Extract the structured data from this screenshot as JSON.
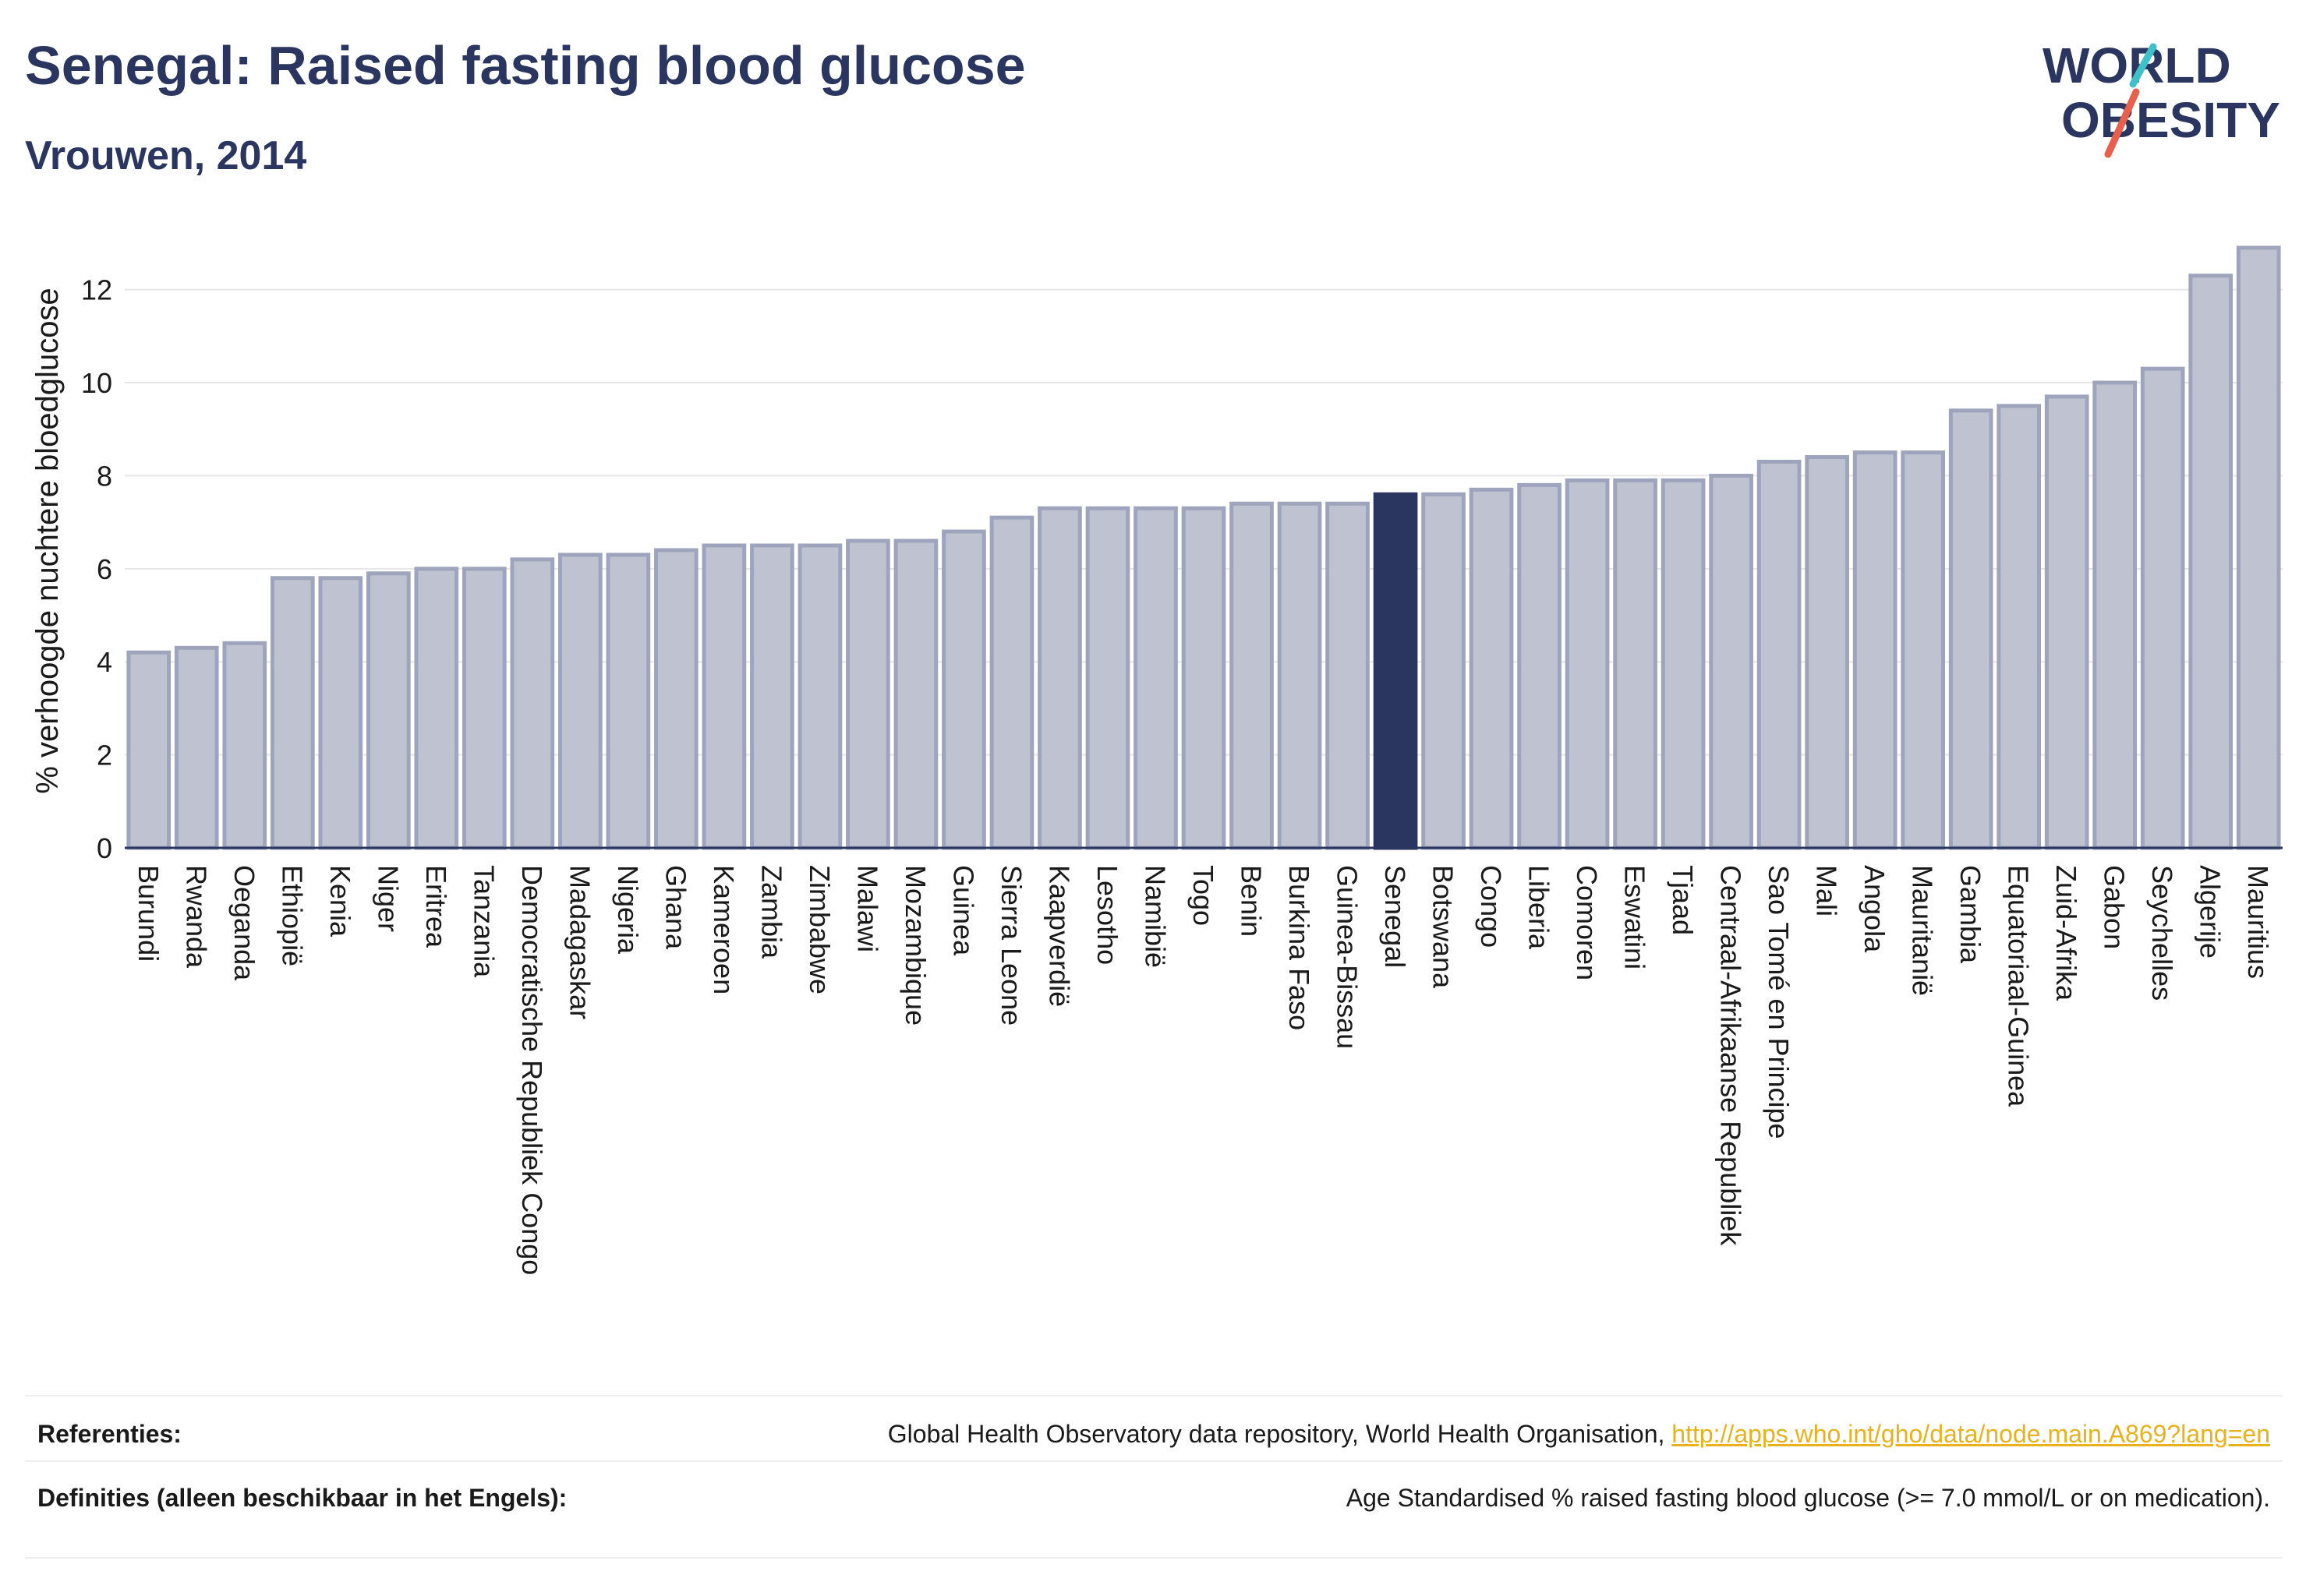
{
  "header": {
    "title": "Senegal: Raised fasting blood glucose",
    "subtitle": "Vrouwen, 2014"
  },
  "logo": {
    "line1": "WORLD",
    "line2": "OBESITY",
    "accent_color": "#e8604c",
    "accent_color_2": "#3ec1c9"
  },
  "colors": {
    "bar": "#bfc3d1",
    "bar_border": "#9ea4bb",
    "highlight": "#2b3660",
    "text": "#2b3660",
    "grid": "#e6e6e6"
  },
  "chart_data": {
    "type": "bar",
    "title": "Senegal: Raised fasting blood glucose",
    "subtitle": "Vrouwen, 2014",
    "xlabel": "",
    "ylabel": "% verhoogde nuchtere bloedglucose",
    "ylim": [
      0,
      13.2
    ],
    "yticks": [
      0,
      2,
      4,
      6,
      8,
      10,
      12
    ],
    "grid": true,
    "highlight": "Senegal",
    "categories": [
      "Burundi",
      "Rwanda",
      "Oeganda",
      "Ethiopië",
      "Kenia",
      "Niger",
      "Eritrea",
      "Tanzania",
      "Democratische Republiek Congo",
      "Madagaskar",
      "Nigeria",
      "Ghana",
      "Kameroen",
      "Zambia",
      "Zimbabwe",
      "Malawi",
      "Mozambique",
      "Guinea",
      "Sierra Leone",
      "Kaapverdië",
      "Lesotho",
      "Namibië",
      "Togo",
      "Benin",
      "Burkina Faso",
      "Guinea-Bissau",
      "Senegal",
      "Botswana",
      "Congo",
      "Liberia",
      "Comoren",
      "Eswatini",
      "Tjaad",
      "Centraal-Afrikaanse Republiek",
      "Sao Tomé en Principe",
      "Mali",
      "Angola",
      "Mauritanië",
      "Gambia",
      "Equatoriaal-Guinea",
      "Zuid-Afrika",
      "Gabon",
      "Seychelles",
      "Algerije",
      "Mauritius"
    ],
    "values": [
      4.2,
      4.3,
      4.4,
      5.8,
      5.8,
      5.9,
      6.0,
      6.0,
      6.2,
      6.3,
      6.3,
      6.4,
      6.5,
      6.5,
      6.5,
      6.6,
      6.6,
      6.8,
      7.1,
      7.3,
      7.3,
      7.3,
      7.3,
      7.4,
      7.4,
      7.4,
      7.6,
      7.6,
      7.7,
      7.8,
      7.9,
      7.9,
      7.9,
      8.0,
      8.3,
      8.4,
      8.5,
      8.5,
      9.4,
      9.5,
      9.7,
      10.0,
      10.3,
      12.3,
      12.9
    ]
  },
  "references": {
    "ref_label": "Referenties:",
    "ref_text": "Global Health Observatory data repository, World Health Organisation, ",
    "ref_link": "http://apps.who.int/gho/data/node.main.A869?lang=en",
    "def_label": "Definities (alleen beschikbaar in het Engels):",
    "def_text": "Age Standardised % raised fasting blood glucose (>= 7.0 mmol/L or on medication)."
  }
}
